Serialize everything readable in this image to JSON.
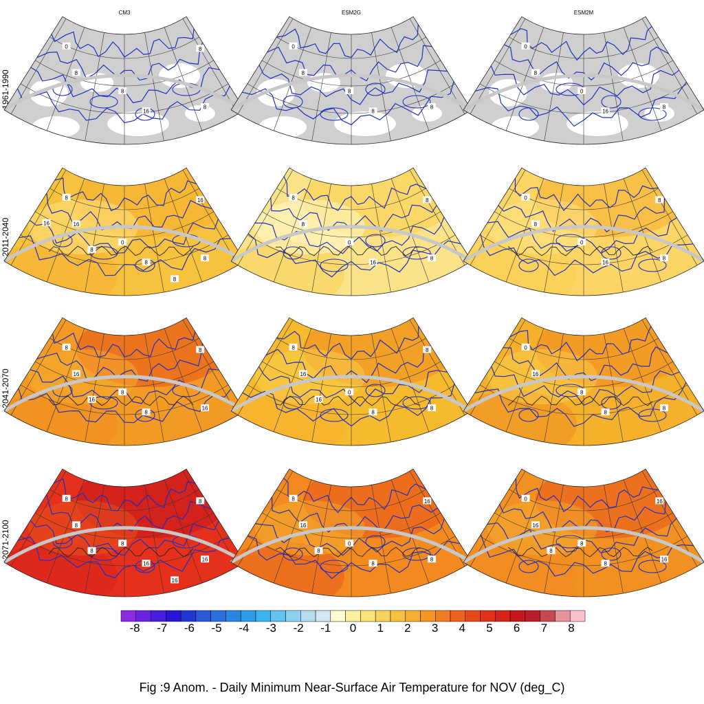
{
  "columns": [
    "CM3",
    "ESM2G",
    "ESM2M"
  ],
  "rows": [
    "1961-1990",
    "2011-2040",
    "2041-2070",
    "2071-2100"
  ],
  "panels": [
    {
      "row": 0,
      "col": 0,
      "base": "#cfcfcf",
      "warm": 0.0,
      "contour_labels": [
        "0",
        "8",
        "8",
        "8",
        "16",
        "8"
      ]
    },
    {
      "row": 0,
      "col": 1,
      "base": "#cfcfcf",
      "warm": 0.0,
      "contour_labels": [
        "0",
        "8",
        "8",
        "8",
        "8"
      ]
    },
    {
      "row": 0,
      "col": 2,
      "base": "#cfcfcf",
      "warm": 0.0,
      "contour_labels": [
        "0",
        "0",
        "8",
        "8",
        "16"
      ]
    },
    {
      "row": 1,
      "col": 0,
      "base": "#f7c23d",
      "warm": 2.0,
      "contour_labels": [
        "8",
        "0",
        "8",
        "16",
        "8",
        "16",
        "8",
        "8",
        "16"
      ]
    },
    {
      "row": 1,
      "col": 1,
      "base": "#fbe38a",
      "warm": 1.3,
      "contour_labels": [
        "8",
        "0",
        "8",
        "8",
        "16",
        "8"
      ]
    },
    {
      "row": 1,
      "col": 2,
      "base": "#fbd565",
      "warm": 1.6,
      "contour_labels": [
        "0",
        "0",
        "8",
        "8",
        "16",
        "8"
      ]
    },
    {
      "row": 2,
      "col": 0,
      "base": "#f29a23",
      "warm": 3.8,
      "contour_labels": [
        "8",
        "8",
        "16",
        "16",
        "8",
        "8",
        "16"
      ]
    },
    {
      "row": 2,
      "col": 1,
      "base": "#f6ba2e",
      "warm": 2.6,
      "contour_labels": [
        "8",
        "0",
        "8",
        "16",
        "8",
        "8",
        "16"
      ]
    },
    {
      "row": 2,
      "col": 2,
      "base": "#f5b02c",
      "warm": 3.0,
      "contour_labels": [
        "0",
        "8",
        "8",
        "16",
        "8"
      ]
    },
    {
      "row": 3,
      "col": 0,
      "base": "#e5301c",
      "warm": 5.6,
      "contour_labels": [
        "8",
        "8",
        "16",
        "8",
        "16",
        "8",
        "8",
        "16"
      ]
    },
    {
      "row": 3,
      "col": 1,
      "base": "#f38a20",
      "warm": 4.0,
      "contour_labels": [
        "8",
        "0",
        "8",
        "16",
        "8",
        "16",
        "8"
      ]
    },
    {
      "row": 3,
      "col": 2,
      "base": "#f39022",
      "warm": 3.9,
      "contour_labels": [
        "0",
        "8",
        "16",
        "16",
        "8",
        "16",
        "8"
      ]
    }
  ],
  "colorbar": {
    "ticks": [
      "-8",
      "-7",
      "-6",
      "-5",
      "-4",
      "-3",
      "-2",
      "-1",
      "0",
      "1",
      "2",
      "3",
      "4",
      "5",
      "6",
      "7",
      "8"
    ],
    "colors": [
      "#8a2be2",
      "#6a24e0",
      "#4b1ddc",
      "#2a14d6",
      "#1f3ad2",
      "#2857d9",
      "#2b6fe0",
      "#2c86e6",
      "#2f9eea",
      "#3ab4ee",
      "#63c3ef",
      "#8dd0ef",
      "#b3dcee",
      "#d3e9f2",
      "#fffbd0",
      "#fdf0a0",
      "#fbe37a",
      "#f9d45a",
      "#f6c23f",
      "#f5ae2f",
      "#f39722",
      "#f07d1e",
      "#ec631b",
      "#e84a1b",
      "#e3321b",
      "#d8201c",
      "#c8161d",
      "#b92127",
      "#c74a52",
      "#e8939b",
      "#ffc0cb"
    ]
  },
  "caption": "Fig :9  Anom.  - Daily Minimum Near-Surface Air Temperature for NOV (deg_C)"
}
